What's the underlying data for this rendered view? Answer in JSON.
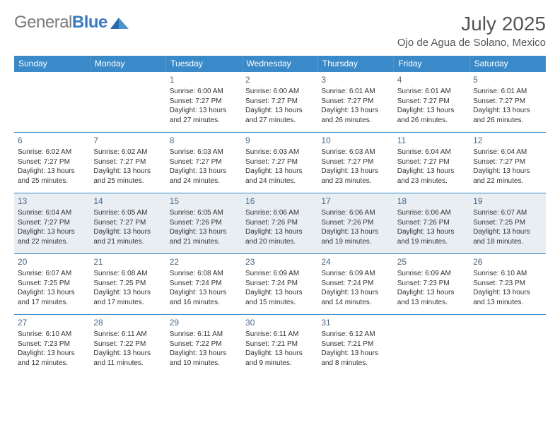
{
  "logo": {
    "text1": "General",
    "text2": "Blue"
  },
  "title": "July 2025",
  "location": "Ojo de Agua de Solano, Mexico",
  "day_headers": [
    "Sunday",
    "Monday",
    "Tuesday",
    "Wednesday",
    "Thursday",
    "Friday",
    "Saturday"
  ],
  "colors": {
    "header_bg": "#3a8ac9",
    "header_text": "#ffffff",
    "cell_border": "#3a8ac9",
    "highlight_bg": "#e9eef3",
    "daynum_color": "#4a6a88",
    "text_color": "#333333",
    "title_color": "#555555",
    "logo_gray": "#7a7a7a",
    "logo_blue": "#3a7bbf"
  },
  "fonts": {
    "title_pt": 28,
    "location_pt": 15,
    "header_pt": 12,
    "daynum_pt": 12,
    "cell_pt": 10
  },
  "layout": {
    "cols": 7,
    "rows": 5,
    "first_day_col": 2,
    "highlight_row_index": 2
  },
  "weeks": [
    [
      null,
      null,
      {
        "n": "1",
        "sunrise": "Sunrise: 6:00 AM",
        "sunset": "Sunset: 7:27 PM",
        "daylight": "Daylight: 13 hours and 27 minutes."
      },
      {
        "n": "2",
        "sunrise": "Sunrise: 6:00 AM",
        "sunset": "Sunset: 7:27 PM",
        "daylight": "Daylight: 13 hours and 27 minutes."
      },
      {
        "n": "3",
        "sunrise": "Sunrise: 6:01 AM",
        "sunset": "Sunset: 7:27 PM",
        "daylight": "Daylight: 13 hours and 26 minutes."
      },
      {
        "n": "4",
        "sunrise": "Sunrise: 6:01 AM",
        "sunset": "Sunset: 7:27 PM",
        "daylight": "Daylight: 13 hours and 26 minutes."
      },
      {
        "n": "5",
        "sunrise": "Sunrise: 6:01 AM",
        "sunset": "Sunset: 7:27 PM",
        "daylight": "Daylight: 13 hours and 26 minutes."
      }
    ],
    [
      {
        "n": "6",
        "sunrise": "Sunrise: 6:02 AM",
        "sunset": "Sunset: 7:27 PM",
        "daylight": "Daylight: 13 hours and 25 minutes."
      },
      {
        "n": "7",
        "sunrise": "Sunrise: 6:02 AM",
        "sunset": "Sunset: 7:27 PM",
        "daylight": "Daylight: 13 hours and 25 minutes."
      },
      {
        "n": "8",
        "sunrise": "Sunrise: 6:03 AM",
        "sunset": "Sunset: 7:27 PM",
        "daylight": "Daylight: 13 hours and 24 minutes."
      },
      {
        "n": "9",
        "sunrise": "Sunrise: 6:03 AM",
        "sunset": "Sunset: 7:27 PM",
        "daylight": "Daylight: 13 hours and 24 minutes."
      },
      {
        "n": "10",
        "sunrise": "Sunrise: 6:03 AM",
        "sunset": "Sunset: 7:27 PM",
        "daylight": "Daylight: 13 hours and 23 minutes."
      },
      {
        "n": "11",
        "sunrise": "Sunrise: 6:04 AM",
        "sunset": "Sunset: 7:27 PM",
        "daylight": "Daylight: 13 hours and 23 minutes."
      },
      {
        "n": "12",
        "sunrise": "Sunrise: 6:04 AM",
        "sunset": "Sunset: 7:27 PM",
        "daylight": "Daylight: 13 hours and 22 minutes."
      }
    ],
    [
      {
        "n": "13",
        "sunrise": "Sunrise: 6:04 AM",
        "sunset": "Sunset: 7:27 PM",
        "daylight": "Daylight: 13 hours and 22 minutes."
      },
      {
        "n": "14",
        "sunrise": "Sunrise: 6:05 AM",
        "sunset": "Sunset: 7:27 PM",
        "daylight": "Daylight: 13 hours and 21 minutes."
      },
      {
        "n": "15",
        "sunrise": "Sunrise: 6:05 AM",
        "sunset": "Sunset: 7:26 PM",
        "daylight": "Daylight: 13 hours and 21 minutes."
      },
      {
        "n": "16",
        "sunrise": "Sunrise: 6:06 AM",
        "sunset": "Sunset: 7:26 PM",
        "daylight": "Daylight: 13 hours and 20 minutes."
      },
      {
        "n": "17",
        "sunrise": "Sunrise: 6:06 AM",
        "sunset": "Sunset: 7:26 PM",
        "daylight": "Daylight: 13 hours and 19 minutes."
      },
      {
        "n": "18",
        "sunrise": "Sunrise: 6:06 AM",
        "sunset": "Sunset: 7:26 PM",
        "daylight": "Daylight: 13 hours and 19 minutes."
      },
      {
        "n": "19",
        "sunrise": "Sunrise: 6:07 AM",
        "sunset": "Sunset: 7:25 PM",
        "daylight": "Daylight: 13 hours and 18 minutes."
      }
    ],
    [
      {
        "n": "20",
        "sunrise": "Sunrise: 6:07 AM",
        "sunset": "Sunset: 7:25 PM",
        "daylight": "Daylight: 13 hours and 17 minutes."
      },
      {
        "n": "21",
        "sunrise": "Sunrise: 6:08 AM",
        "sunset": "Sunset: 7:25 PM",
        "daylight": "Daylight: 13 hours and 17 minutes."
      },
      {
        "n": "22",
        "sunrise": "Sunrise: 6:08 AM",
        "sunset": "Sunset: 7:24 PM",
        "daylight": "Daylight: 13 hours and 16 minutes."
      },
      {
        "n": "23",
        "sunrise": "Sunrise: 6:09 AM",
        "sunset": "Sunset: 7:24 PM",
        "daylight": "Daylight: 13 hours and 15 minutes."
      },
      {
        "n": "24",
        "sunrise": "Sunrise: 6:09 AM",
        "sunset": "Sunset: 7:24 PM",
        "daylight": "Daylight: 13 hours and 14 minutes."
      },
      {
        "n": "25",
        "sunrise": "Sunrise: 6:09 AM",
        "sunset": "Sunset: 7:23 PM",
        "daylight": "Daylight: 13 hours and 13 minutes."
      },
      {
        "n": "26",
        "sunrise": "Sunrise: 6:10 AM",
        "sunset": "Sunset: 7:23 PM",
        "daylight": "Daylight: 13 hours and 13 minutes."
      }
    ],
    [
      {
        "n": "27",
        "sunrise": "Sunrise: 6:10 AM",
        "sunset": "Sunset: 7:23 PM",
        "daylight": "Daylight: 13 hours and 12 minutes."
      },
      {
        "n": "28",
        "sunrise": "Sunrise: 6:11 AM",
        "sunset": "Sunset: 7:22 PM",
        "daylight": "Daylight: 13 hours and 11 minutes."
      },
      {
        "n": "29",
        "sunrise": "Sunrise: 6:11 AM",
        "sunset": "Sunset: 7:22 PM",
        "daylight": "Daylight: 13 hours and 10 minutes."
      },
      {
        "n": "30",
        "sunrise": "Sunrise: 6:11 AM",
        "sunset": "Sunset: 7:21 PM",
        "daylight": "Daylight: 13 hours and 9 minutes."
      },
      {
        "n": "31",
        "sunrise": "Sunrise: 6:12 AM",
        "sunset": "Sunset: 7:21 PM",
        "daylight": "Daylight: 13 hours and 8 minutes."
      },
      null,
      null
    ]
  ]
}
